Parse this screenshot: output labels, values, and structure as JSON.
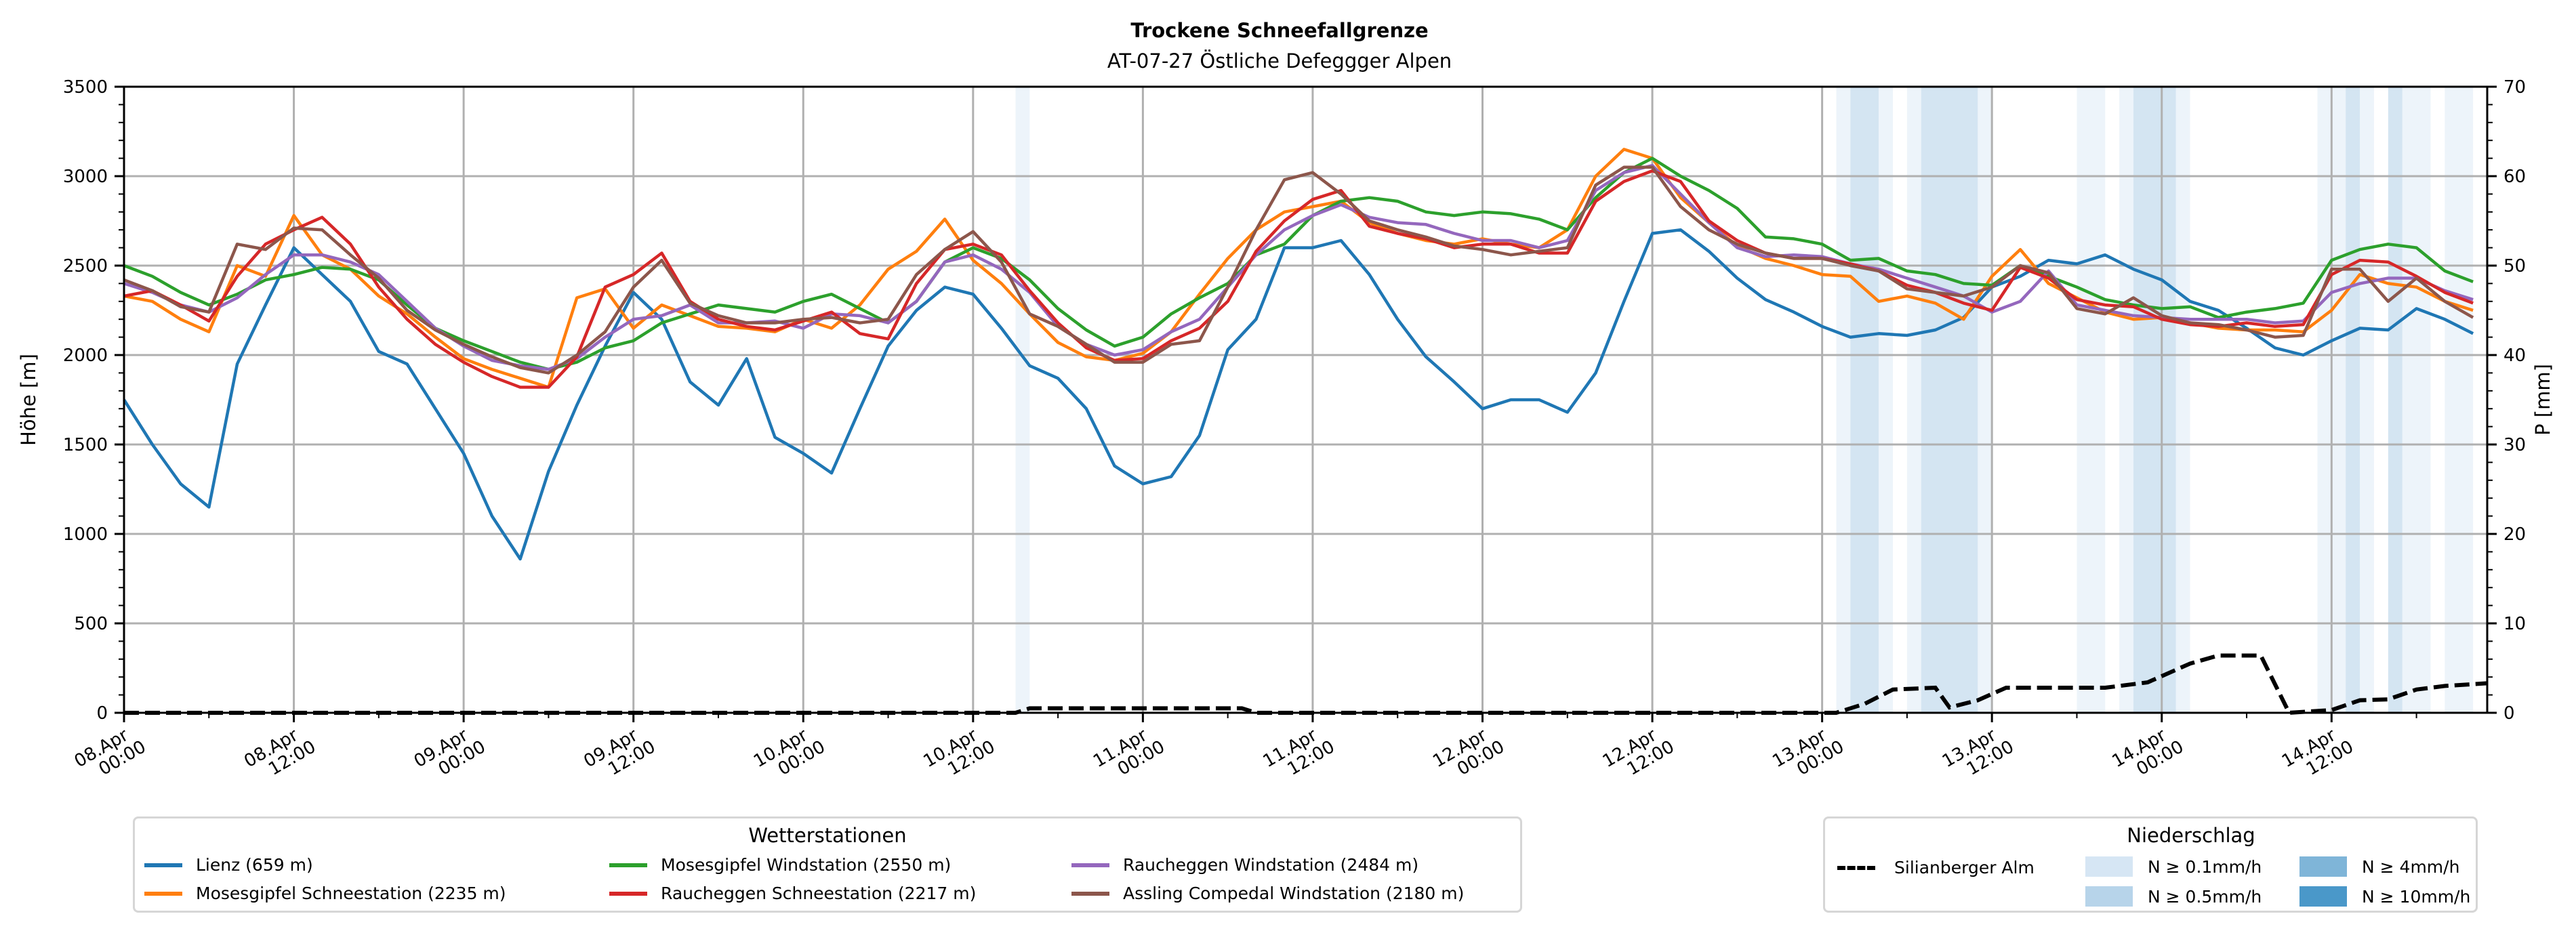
{
  "chart_data": {
    "type": "line",
    "title": "Trockene Schneefallgrenze",
    "subtitle": "AT-07-27 Östliche Defeggger Alpen",
    "ylabel": "Höhe [m]",
    "y2label": "P [mm]",
    "ylim": [
      0,
      3500
    ],
    "y2lim": [
      0,
      70
    ],
    "yticks": [
      0,
      500,
      1000,
      1500,
      2000,
      2500,
      3000,
      3500
    ],
    "y2ticks": [
      0,
      10,
      20,
      30,
      40,
      50,
      60,
      70
    ],
    "xlim_hours": [
      0,
      167
    ],
    "x_unit": "hours since 08.Apr 00:00",
    "xticks": [
      {
        "h": 0,
        "label": [
          "08.Apr",
          "00:00"
        ]
      },
      {
        "h": 12,
        "label": [
          "08.Apr",
          "12:00"
        ]
      },
      {
        "h": 24,
        "label": [
          "09.Apr",
          "00:00"
        ]
      },
      {
        "h": 36,
        "label": [
          "09.Apr",
          "12:00"
        ]
      },
      {
        "h": 48,
        "label": [
          "10.Apr",
          "00:00"
        ]
      },
      {
        "h": 60,
        "label": [
          "10.Apr",
          "12:00"
        ]
      },
      {
        "h": 72,
        "label": [
          "11.Apr",
          "00:00"
        ]
      },
      {
        "h": 84,
        "label": [
          "11.Apr",
          "12:00"
        ]
      },
      {
        "h": 96,
        "label": [
          "12.Apr",
          "00:00"
        ]
      },
      {
        "h": 108,
        "label": [
          "12.Apr",
          "12:00"
        ]
      },
      {
        "h": 120,
        "label": [
          "13.Apr",
          "00:00"
        ]
      },
      {
        "h": 132,
        "label": [
          "13.Apr",
          "12:00"
        ]
      },
      {
        "h": 144,
        "label": [
          "14.Apr",
          "00:00"
        ]
      },
      {
        "h": 156,
        "label": [
          "14.Apr",
          "12:00"
        ]
      }
    ],
    "grid": true,
    "x_step_hours": 2,
    "series": [
      {
        "name": "Lienz (659 m)",
        "color": "#1f77b4",
        "values": [
          1750,
          1500,
          1280,
          1150,
          1950,
          2280,
          2600,
          2450,
          2300,
          2020,
          1950,
          1700,
          1450,
          1100,
          860,
          1350,
          1720,
          2050,
          2350,
          2200,
          1850,
          1720,
          1980,
          1540,
          1450,
          1340,
          1700,
          2050,
          2250,
          2380,
          2340,
          2150,
          1940,
          1870,
          1700,
          1380,
          1280,
          1320,
          1550,
          2030,
          2200,
          2600,
          2600,
          2640,
          2450,
          2200,
          1990,
          1850,
          1700,
          1750,
          1750,
          1680,
          1900,
          2300,
          2680,
          2700,
          2580,
          2430,
          2310,
          2240,
          2160,
          2100,
          2120,
          2110,
          2140,
          2210,
          2380,
          2440,
          2530,
          2510,
          2560,
          2480,
          2420,
          2300,
          2250,
          2150,
          2040,
          2000,
          2080,
          2150,
          2140,
          2260,
          2200,
          2120
        ]
      },
      {
        "name": "Mosesgipfel Schneestation (2235 m)",
        "color": "#ff7f0e",
        "values": [
          2330,
          2300,
          2200,
          2130,
          2500,
          2440,
          2780,
          2560,
          2480,
          2330,
          2230,
          2100,
          1980,
          1920,
          1870,
          1820,
          2320,
          2370,
          2150,
          2280,
          2220,
          2160,
          2150,
          2130,
          2200,
          2150,
          2280,
          2480,
          2580,
          2760,
          2530,
          2400,
          2230,
          2070,
          1990,
          1970,
          2010,
          2130,
          2340,
          2540,
          2700,
          2800,
          2830,
          2860,
          2740,
          2680,
          2640,
          2620,
          2650,
          2620,
          2600,
          2700,
          3000,
          3150,
          3100,
          2880,
          2740,
          2610,
          2540,
          2500,
          2450,
          2440,
          2300,
          2330,
          2290,
          2200,
          2440,
          2590,
          2400,
          2320,
          2240,
          2200,
          2210,
          2180,
          2150,
          2140,
          2140,
          2130,
          2250,
          2450,
          2400,
          2380,
          2300,
          2250
        ]
      },
      {
        "name": "Mosesgipfel Windstation (2550 m)",
        "color": "#2ca02c",
        "values": [
          2500,
          2440,
          2350,
          2280,
          2340,
          2420,
          2450,
          2490,
          2480,
          2420,
          2280,
          2150,
          2080,
          2020,
          1960,
          1920,
          1960,
          2040,
          2080,
          2180,
          2230,
          2280,
          2260,
          2240,
          2300,
          2340,
          2260,
          2180,
          2300,
          2520,
          2600,
          2540,
          2420,
          2260,
          2140,
          2050,
          2100,
          2230,
          2320,
          2400,
          2560,
          2620,
          2780,
          2860,
          2880,
          2860,
          2800,
          2780,
          2800,
          2790,
          2760,
          2700,
          2880,
          3020,
          3100,
          3000,
          2920,
          2820,
          2660,
          2650,
          2620,
          2530,
          2540,
          2470,
          2450,
          2400,
          2390,
          2500,
          2440,
          2380,
          2310,
          2280,
          2260,
          2270,
          2210,
          2240,
          2260,
          2290,
          2530,
          2590,
          2620,
          2600,
          2470,
          2410
        ]
      },
      {
        "name": "Raucheggen Windstation (2484 m)",
        "color": "#9467bd",
        "values": [
          2400,
          2350,
          2280,
          2240,
          2320,
          2450,
          2560,
          2560,
          2520,
          2450,
          2300,
          2150,
          2050,
          1970,
          1940,
          1920,
          1980,
          2100,
          2200,
          2220,
          2280,
          2180,
          2180,
          2190,
          2150,
          2230,
          2220,
          2180,
          2300,
          2520,
          2560,
          2480,
          2350,
          2160,
          2060,
          2000,
          2030,
          2130,
          2200,
          2380,
          2560,
          2700,
          2780,
          2840,
          2770,
          2740,
          2730,
          2680,
          2640,
          2640,
          2600,
          2640,
          2920,
          3020,
          3060,
          2900,
          2740,
          2600,
          2550,
          2560,
          2550,
          2510,
          2480,
          2430,
          2380,
          2330,
          2240,
          2300,
          2470,
          2280,
          2250,
          2220,
          2210,
          2200,
          2200,
          2200,
          2180,
          2190,
          2350,
          2400,
          2430,
          2430,
          2360,
          2310
        ]
      },
      {
        "name": "Raucheggen Schneestation (2217 m)",
        "color": "#d62728",
        "values": [
          2330,
          2360,
          2280,
          2190,
          2440,
          2620,
          2700,
          2770,
          2620,
          2380,
          2200,
          2060,
          1960,
          1880,
          1820,
          1820,
          1990,
          2380,
          2450,
          2570,
          2300,
          2200,
          2160,
          2140,
          2190,
          2240,
          2120,
          2090,
          2400,
          2590,
          2620,
          2560,
          2360,
          2180,
          2040,
          1970,
          1980,
          2080,
          2150,
          2300,
          2580,
          2750,
          2870,
          2920,
          2720,
          2680,
          2650,
          2600,
          2620,
          2620,
          2570,
          2570,
          2860,
          2970,
          3030,
          2970,
          2750,
          2640,
          2570,
          2540,
          2540,
          2510,
          2470,
          2390,
          2350,
          2290,
          2250,
          2490,
          2430,
          2310,
          2280,
          2270,
          2200,
          2170,
          2160,
          2180,
          2160,
          2170,
          2450,
          2530,
          2520,
          2440,
          2350,
          2290
        ]
      },
      {
        "name": "Assling Compedal Windstation (2180 m)",
        "color": "#8c564b",
        "values": [
          2420,
          2360,
          2270,
          2240,
          2620,
          2590,
          2710,
          2700,
          2560,
          2430,
          2250,
          2140,
          2060,
          1990,
          1930,
          1900,
          2000,
          2130,
          2380,
          2530,
          2290,
          2220,
          2180,
          2180,
          2200,
          2210,
          2180,
          2200,
          2450,
          2590,
          2690,
          2520,
          2230,
          2160,
          2060,
          1960,
          1960,
          2060,
          2080,
          2380,
          2700,
          2980,
          3020,
          2900,
          2750,
          2700,
          2660,
          2610,
          2590,
          2560,
          2580,
          2600,
          2950,
          3050,
          3050,
          2830,
          2700,
          2620,
          2570,
          2540,
          2540,
          2500,
          2470,
          2370,
          2350,
          2330,
          2380,
          2500,
          2460,
          2260,
          2230,
          2320,
          2220,
          2180,
          2170,
          2140,
          2100,
          2110,
          2480,
          2480,
          2300,
          2430,
          2300,
          2210
        ]
      }
    ],
    "precip_line": {
      "name": "Silianberger Alm",
      "unit": "mm",
      "points": [
        [
          0,
          0
        ],
        [
          63,
          0
        ],
        [
          64,
          0.5
        ],
        [
          79,
          0.5
        ],
        [
          80,
          0
        ],
        [
          121,
          0
        ],
        [
          123,
          1
        ],
        [
          125,
          2.6
        ],
        [
          128,
          2.8
        ],
        [
          129,
          0.6
        ],
        [
          131,
          1.4
        ],
        [
          133,
          2.8
        ],
        [
          140,
          2.8
        ],
        [
          143,
          3.4
        ],
        [
          146,
          5.5
        ],
        [
          148,
          6.4
        ],
        [
          151,
          6.4
        ],
        [
          153,
          0
        ],
        [
          156,
          0.3
        ],
        [
          158,
          1.4
        ],
        [
          160,
          1.5
        ],
        [
          162,
          2.6
        ],
        [
          164,
          3
        ],
        [
          167,
          3.3
        ]
      ]
    },
    "precip_bands": [
      {
        "start": 63,
        "end": 64,
        "level": "N ≥ 0.1mm/h"
      },
      {
        "start": 121,
        "end": 122,
        "level": "N ≥ 0.1mm/h"
      },
      {
        "start": 122,
        "end": 124,
        "level": "N ≥ 0.5mm/h"
      },
      {
        "start": 124,
        "end": 125,
        "level": "N ≥ 0.1mm/h"
      },
      {
        "start": 126,
        "end": 127,
        "level": "N ≥ 0.1mm/h"
      },
      {
        "start": 127,
        "end": 131,
        "level": "N ≥ 0.5mm/h"
      },
      {
        "start": 131,
        "end": 132,
        "level": "N ≥ 0.1mm/h"
      },
      {
        "start": 138,
        "end": 140,
        "level": "N ≥ 0.1mm/h"
      },
      {
        "start": 141,
        "end": 142,
        "level": "N ≥ 0.1mm/h"
      },
      {
        "start": 142,
        "end": 145,
        "level": "N ≥ 0.5mm/h"
      },
      {
        "start": 145,
        "end": 146,
        "level": "N ≥ 0.1mm/h"
      },
      {
        "start": 155,
        "end": 157,
        "level": "N ≥ 0.1mm/h"
      },
      {
        "start": 157,
        "end": 158,
        "level": "N ≥ 0.5mm/h"
      },
      {
        "start": 158,
        "end": 159,
        "level": "N ≥ 0.1mm/h"
      },
      {
        "start": 160,
        "end": 161,
        "level": "N ≥ 0.5mm/h"
      },
      {
        "start": 161,
        "end": 163,
        "level": "N ≥ 0.1mm/h"
      },
      {
        "start": 164,
        "end": 166,
        "level": "N ≥ 0.1mm/h"
      }
    ],
    "legend_stations": {
      "title": "Wetterstationen",
      "placement": "bottom-left"
    },
    "legend_precip": {
      "title": "Niederschlag",
      "placement": "bottom-right",
      "levels": [
        {
          "label": "N ≥ 0.1mm/h",
          "color": "#d6e6f4"
        },
        {
          "label": "N ≥ 0.5mm/h",
          "color": "#b7d4ea"
        },
        {
          "label": "N ≥ 4mm/h",
          "color": "#7fb5d8"
        },
        {
          "label": "N ≥ 10mm/h",
          "color": "#4a98c9"
        }
      ]
    }
  }
}
